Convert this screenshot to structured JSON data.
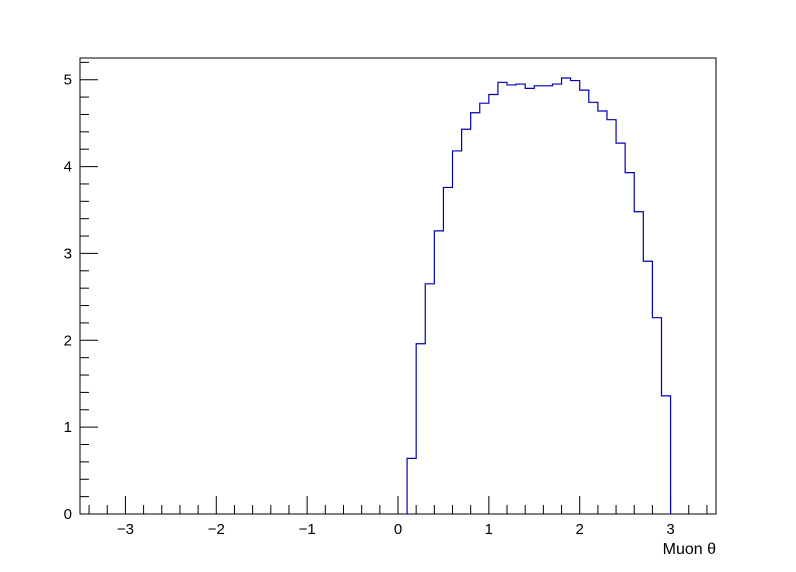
{
  "chart_data": {
    "type": "histogram",
    "title": "",
    "xlabel": "Muon θ",
    "ylabel": "",
    "xlim": [
      -3.5,
      3.5
    ],
    "ylim": [
      0,
      5.25
    ],
    "x_ticks": [
      "−3",
      "−2",
      "−1",
      "0",
      "1",
      "2",
      "3"
    ],
    "x_tick_values": [
      -3,
      -2,
      -1,
      0,
      1,
      2,
      3
    ],
    "y_ticks": [
      "0",
      "1",
      "2",
      "3",
      "4",
      "5"
    ],
    "y_tick_values": [
      0,
      1,
      2,
      3,
      4,
      5
    ],
    "bin_width": 0.1,
    "bin_low_edges": [
      0.1,
      0.2,
      0.3,
      0.4,
      0.5,
      0.6,
      0.7,
      0.8,
      0.9,
      1.0,
      1.1,
      1.2,
      1.3,
      1.4,
      1.5,
      1.6,
      1.7,
      1.8,
      1.9,
      2.0,
      2.1,
      2.2,
      2.3,
      2.4,
      2.5,
      2.6,
      2.7,
      2.8,
      2.9
    ],
    "values": [
      0.64,
      1.96,
      2.65,
      3.26,
      3.76,
      4.18,
      4.43,
      4.62,
      4.73,
      4.83,
      4.97,
      4.94,
      4.95,
      4.9,
      4.93,
      4.93,
      4.95,
      5.02,
      4.99,
      4.88,
      4.74,
      4.64,
      4.54,
      4.27,
      3.93,
      3.48,
      2.91,
      2.26,
      1.36
    ],
    "line_color": "#0000b0",
    "grid": false,
    "legend": "none"
  }
}
